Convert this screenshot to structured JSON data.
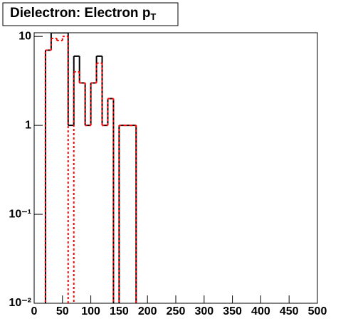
{
  "chart_data": {
    "type": "histogram",
    "title": {
      "text": "Dielectron: Electron p",
      "subscript": "T"
    },
    "bins": [
      0,
      10,
      20,
      30,
      40,
      50,
      60,
      70,
      80,
      90,
      100,
      110,
      120,
      130,
      140,
      150,
      160,
      170,
      180,
      190,
      200,
      210,
      220,
      230,
      240,
      250,
      260,
      270,
      280,
      290,
      300,
      310,
      320,
      330,
      340,
      350,
      360,
      370,
      380,
      390,
      400,
      410,
      420,
      430,
      440,
      450,
      460,
      470,
      480,
      490,
      500
    ],
    "series": [
      {
        "color": "#000000",
        "dash": false,
        "values": [
          0,
          0,
          7,
          11,
          11,
          11,
          1,
          6,
          3,
          1,
          3,
          6,
          1,
          2,
          0,
          1,
          1,
          1,
          0,
          0,
          0,
          0,
          0,
          0,
          0,
          0,
          0,
          0,
          0,
          0,
          0,
          0,
          0,
          0,
          0,
          0,
          0,
          0,
          0,
          0,
          0,
          0,
          0,
          0,
          0,
          0,
          0,
          0,
          0,
          0
        ]
      },
      {
        "color": "#ff0000",
        "dash": true,
        "values": [
          0,
          0,
          7,
          9.5,
          9,
          10,
          0,
          4,
          3,
          1,
          3,
          5,
          1,
          2,
          0,
          1,
          1,
          1,
          0,
          0,
          0,
          0,
          0,
          0,
          0,
          0,
          0,
          0,
          0,
          0,
          0,
          0,
          0,
          0,
          0,
          0,
          0,
          0,
          0,
          0,
          0,
          0,
          0,
          0,
          0,
          0,
          0,
          0,
          0,
          0
        ]
      }
    ],
    "xlim": [
      0,
      500
    ],
    "xticks": [
      0,
      50,
      100,
      150,
      200,
      250,
      300,
      350,
      400,
      450,
      500
    ],
    "ylim": [
      0.01,
      11
    ],
    "log_y": true,
    "yticks": [
      {
        "value": 0.01,
        "label": "10⁻²"
      },
      {
        "value": 0.1,
        "label": "10⁻¹"
      },
      1,
      10
    ]
  }
}
